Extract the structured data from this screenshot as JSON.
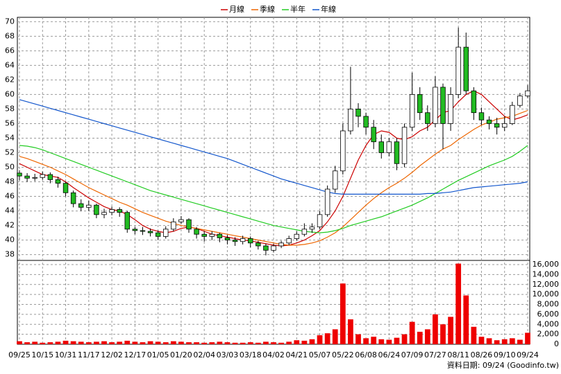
{
  "chart_data": {
    "type": "candlestick",
    "categories": [
      "09/25",
      null,
      null,
      "10/15",
      null,
      null,
      "10/31",
      null,
      null,
      "11/17",
      null,
      null,
      "12/02",
      null,
      null,
      "12/17",
      null,
      null,
      "01/05",
      null,
      null,
      "01/20",
      null,
      null,
      "02/04",
      null,
      null,
      "03/03",
      null,
      null,
      "03/18",
      null,
      null,
      "04/02",
      null,
      null,
      "04/21",
      null,
      null,
      "05/07",
      null,
      null,
      "05/22",
      null,
      null,
      "06/08",
      null,
      null,
      "06/24",
      null,
      null,
      "07/09",
      null,
      null,
      "07/27",
      null,
      null,
      "08/11",
      null,
      null,
      "08/26",
      null,
      null,
      "09/10",
      null,
      null,
      "09/24"
    ],
    "open": [
      49.2,
      48.8,
      48.5,
      48.6,
      49.0,
      48.3,
      47.8,
      46.5,
      45.0,
      44.5,
      44.8,
      43.5,
      43.8,
      44.2,
      43.8,
      41.5,
      41.3,
      41.2,
      41.0,
      40.5,
      41.5,
      42.5,
      42.8,
      41.5,
      40.8,
      40.5,
      40.8,
      40.3,
      40.0,
      39.8,
      40.2,
      39.6,
      39.2,
      38.6,
      39.2,
      39.6,
      40.2,
      40.8,
      41.5,
      41.8,
      43.5,
      47.0,
      49.5,
      55.0,
      58.0,
      57.0,
      55.5,
      53.5,
      52.0,
      53.5,
      50.5,
      55.5,
      60.0,
      57.5,
      56.0,
      61.0,
      56.0,
      60.0,
      66.5,
      60.5,
      57.5,
      56.5,
      56.0,
      55.5,
      56.0,
      58.5,
      59.8
    ],
    "high": [
      49.6,
      49.2,
      49.1,
      49.4,
      49.3,
      48.7,
      48.0,
      46.8,
      45.6,
      45.4,
      45.0,
      44.3,
      44.6,
      44.5,
      44.0,
      41.8,
      41.8,
      41.6,
      41.3,
      41.9,
      43.0,
      43.3,
      43.0,
      41.8,
      41.2,
      41.2,
      41.0,
      40.7,
      40.4,
      40.6,
      40.5,
      39.9,
      39.5,
      39.5,
      39.9,
      40.6,
      41.2,
      42.3,
      42.3,
      44.0,
      47.5,
      50.2,
      56.0,
      63.8,
      58.8,
      57.5,
      56.5,
      54.5,
      54.0,
      54.0,
      56.0,
      63.0,
      61.0,
      58.5,
      62.5,
      61.5,
      61.0,
      69.2,
      68.5,
      61.0,
      58.2,
      57.0,
      56.8,
      57.0,
      59.0,
      60.2,
      61.3
    ],
    "low": [
      48.2,
      48.0,
      48.1,
      48.3,
      47.8,
      47.2,
      46.0,
      44.5,
      44.0,
      44.0,
      43.0,
      43.0,
      43.4,
      43.2,
      41.0,
      40.8,
      40.7,
      40.5,
      40.0,
      40.2,
      41.2,
      42.2,
      41.0,
      40.2,
      39.8,
      40.0,
      39.7,
      39.4,
      39.2,
      39.4,
      39.0,
      38.7,
      37.9,
      38.3,
      38.9,
      39.3,
      39.9,
      40.5,
      41.0,
      41.5,
      43.2,
      46.5,
      49.0,
      54.5,
      55.5,
      54.5,
      52.5,
      51.2,
      51.5,
      49.6,
      50.0,
      55.0,
      56.5,
      55.0,
      55.5,
      52.5,
      55.0,
      59.5,
      60.0,
      56.5,
      55.8,
      55.2,
      54.5,
      55.0,
      55.8,
      58.2,
      59.5
    ],
    "close": [
      48.8,
      48.5,
      48.6,
      49.0,
      48.3,
      47.8,
      46.5,
      45.0,
      44.5,
      44.8,
      43.5,
      43.8,
      44.2,
      43.8,
      41.5,
      41.3,
      41.2,
      41.0,
      40.5,
      41.5,
      42.5,
      42.8,
      41.5,
      40.8,
      40.5,
      40.8,
      40.3,
      40.0,
      39.8,
      40.2,
      39.6,
      39.2,
      38.6,
      39.2,
      39.6,
      40.2,
      40.8,
      41.5,
      41.8,
      43.5,
      47.0,
      49.5,
      55.0,
      58.0,
      57.0,
      55.5,
      53.5,
      52.0,
      53.5,
      50.5,
      55.5,
      60.0,
      57.5,
      56.0,
      61.0,
      56.0,
      60.0,
      66.5,
      60.5,
      57.5,
      56.5,
      56.0,
      55.5,
      56.0,
      58.5,
      59.8,
      60.5
    ],
    "up_color": "#ffffff",
    "down_color": "#22bb22",
    "candle_edge": "#000000",
    "series": [
      {
        "name": "月線",
        "color": "#cc0000",
        "values": [
          50.5,
          50.0,
          49.5,
          49.0,
          48.8,
          48.6,
          48.0,
          47.2,
          46.5,
          45.8,
          45.2,
          44.6,
          44.2,
          44.0,
          43.5,
          42.8,
          42.0,
          41.5,
          41.2,
          41.0,
          41.2,
          41.6,
          41.8,
          41.6,
          41.2,
          40.8,
          40.6,
          40.4,
          40.2,
          40.0,
          39.9,
          39.7,
          39.5,
          39.3,
          39.2,
          39.3,
          39.6,
          40.0,
          40.6,
          41.3,
          42.5,
          44.0,
          46.0,
          48.5,
          51.0,
          53.0,
          54.5,
          55.0,
          54.8,
          54.0,
          53.8,
          54.2,
          55.0,
          55.5,
          56.5,
          57.5,
          57.8,
          59.0,
          60.0,
          60.5,
          60.0,
          59.0,
          58.0,
          57.0,
          56.5,
          56.8,
          57.2
        ]
      },
      {
        "name": "季線",
        "color": "#ee6600",
        "values": [
          51.5,
          51.2,
          50.8,
          50.4,
          50.0,
          49.5,
          49.0,
          48.4,
          47.8,
          47.2,
          46.7,
          46.2,
          45.7,
          45.2,
          44.8,
          44.3,
          43.8,
          43.4,
          43.0,
          42.6,
          42.3,
          42.0,
          41.8,
          41.6,
          41.4,
          41.2,
          41.0,
          40.8,
          40.6,
          40.4,
          40.2,
          40.0,
          39.8,
          39.6,
          39.4,
          39.3,
          39.3,
          39.4,
          39.6,
          39.9,
          40.4,
          41.0,
          41.8,
          42.8,
          43.8,
          44.8,
          45.7,
          46.5,
          47.2,
          47.8,
          48.5,
          49.3,
          50.2,
          51.0,
          51.8,
          52.5,
          53.0,
          53.8,
          54.5,
          55.2,
          55.8,
          56.2,
          56.6,
          56.8,
          57.0,
          57.4,
          57.8
        ]
      },
      {
        "name": "半年",
        "color": "#22cc22",
        "values": [
          53.0,
          52.9,
          52.7,
          52.4,
          52.0,
          51.6,
          51.2,
          50.8,
          50.4,
          50.0,
          49.6,
          49.2,
          48.8,
          48.4,
          48.0,
          47.6,
          47.2,
          46.8,
          46.5,
          46.2,
          45.9,
          45.6,
          45.3,
          45.0,
          44.7,
          44.4,
          44.1,
          43.8,
          43.5,
          43.2,
          42.9,
          42.6,
          42.3,
          42.0,
          41.8,
          41.6,
          41.4,
          41.2,
          41.1,
          41.0,
          41.1,
          41.3,
          41.6,
          42.0,
          42.3,
          42.6,
          42.9,
          43.2,
          43.6,
          44.0,
          44.4,
          44.8,
          45.3,
          45.8,
          46.4,
          47.0,
          47.6,
          48.2,
          48.7,
          49.2,
          49.7,
          50.2,
          50.6,
          51.0,
          51.5,
          52.2,
          53.0
        ]
      },
      {
        "name": "年線",
        "color": "#1155cc",
        "values": [
          59.3,
          59.0,
          58.7,
          58.4,
          58.1,
          57.8,
          57.5,
          57.2,
          56.9,
          56.6,
          56.3,
          56.0,
          55.7,
          55.4,
          55.1,
          54.8,
          54.5,
          54.2,
          53.9,
          53.6,
          53.3,
          53.0,
          52.7,
          52.4,
          52.1,
          51.8,
          51.5,
          51.2,
          50.8,
          50.4,
          50.0,
          49.6,
          49.2,
          48.8,
          48.4,
          48.1,
          47.8,
          47.5,
          47.2,
          46.9,
          46.6,
          46.4,
          46.3,
          46.3,
          46.3,
          46.3,
          46.3,
          46.3,
          46.3,
          46.3,
          46.3,
          46.3,
          46.3,
          46.4,
          46.4,
          46.5,
          46.6,
          46.8,
          47.0,
          47.2,
          47.3,
          47.4,
          47.5,
          47.6,
          47.7,
          47.8,
          48.0
        ]
      }
    ],
    "volume": {
      "color": "#ee0000",
      "axis": "y2",
      "values": [
        600,
        400,
        500,
        300,
        400,
        500,
        700,
        600,
        500,
        400,
        500,
        600,
        400,
        500,
        700,
        500,
        400,
        600,
        500,
        400,
        600,
        500,
        400,
        400,
        300,
        400,
        500,
        400,
        300,
        300,
        400,
        300,
        500,
        400,
        300,
        500,
        800,
        700,
        1000,
        1800,
        2200,
        3000,
        12200,
        5000,
        2000,
        1200,
        1500,
        1000,
        900,
        1300,
        2000,
        4500,
        2500,
        3000,
        6000,
        4000,
        5500,
        16200,
        9800,
        3500,
        1500,
        1200,
        800,
        1000,
        1200,
        900,
        2300
      ]
    },
    "ylim": [
      37.3,
      70.6
    ],
    "yticks": [
      38,
      40,
      42,
      44,
      46,
      48,
      50,
      52,
      54,
      56,
      58,
      60,
      62,
      64,
      66,
      68,
      70
    ],
    "y2lim": [
      0,
      16700
    ],
    "y2ticks": [
      0,
      {
        "value": 2000,
        "label": "2,000"
      },
      {
        "value": 4000,
        "label": "4,000"
      },
      {
        "value": 6000,
        "label": "6,000"
      },
      {
        "value": 8000,
        "label": "8,000"
      },
      {
        "value": 10000,
        "label": "10,000"
      },
      {
        "value": 12000,
        "label": "12,000"
      },
      {
        "value": 14000,
        "label": "14,000"
      },
      {
        "value": 16000,
        "label": "16,000"
      }
    ],
    "grid": true,
    "legend": "top",
    "source": "資料日期: 09/24 (Goodinfo.tw)"
  }
}
